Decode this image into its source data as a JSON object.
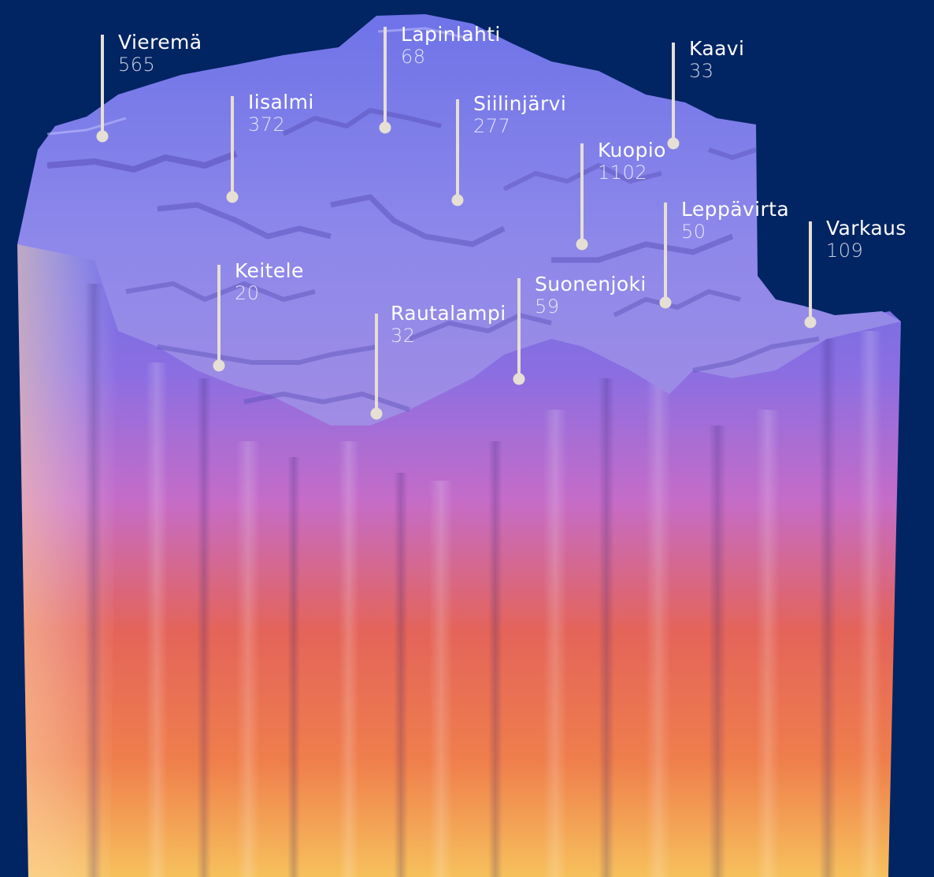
{
  "map": {
    "colors": {
      "background": "#012463",
      "surface": "#7c82ea",
      "marker": "#e6dfd3",
      "column_top": "#6f6fe6",
      "column_mid": "#e46a5a",
      "column_bottom": "#f7c05c"
    },
    "municipalities": [
      {
        "name": "Vieremä",
        "value": "565"
      },
      {
        "name": "Lapinlahti",
        "value": "68"
      },
      {
        "name": "Kaavi",
        "value": "33"
      },
      {
        "name": "Iisalmi",
        "value": "372"
      },
      {
        "name": "Siilinjärvi",
        "value": "277"
      },
      {
        "name": "Kuopio",
        "value": "1102"
      },
      {
        "name": "Leppävirta",
        "value": "50"
      },
      {
        "name": "Varkaus",
        "value": "109"
      },
      {
        "name": "Keitele",
        "value": "20"
      },
      {
        "name": "Suonenjoki",
        "value": "59"
      },
      {
        "name": "Rautalampi",
        "value": "32"
      }
    ]
  }
}
